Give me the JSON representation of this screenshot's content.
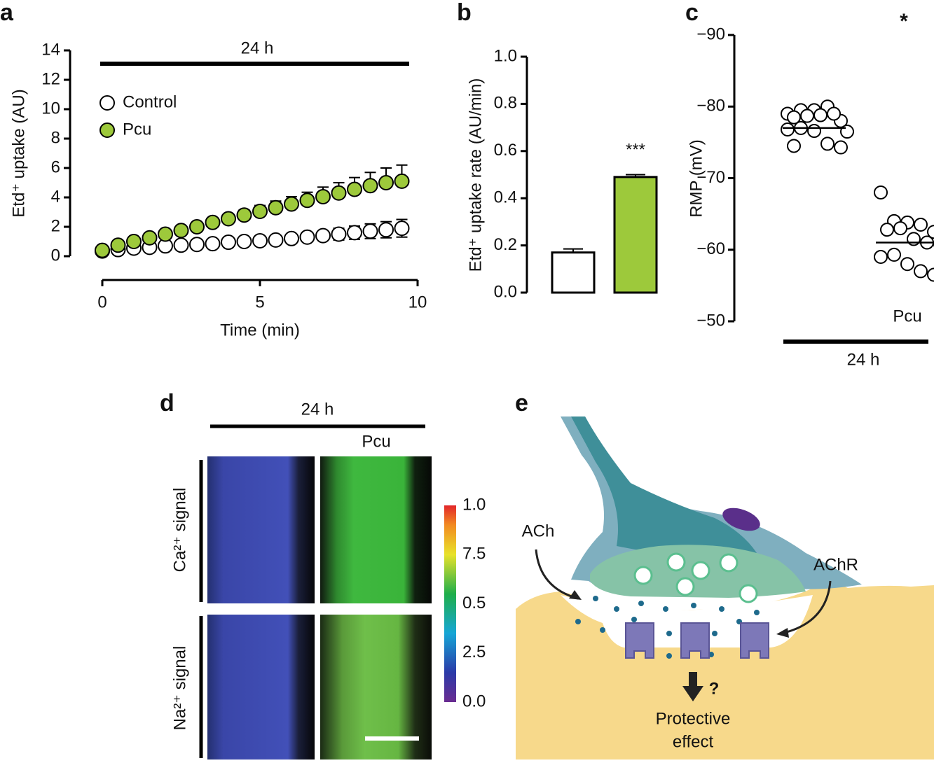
{
  "panel_labels": [
    "a",
    "b",
    "c",
    "d",
    "e"
  ],
  "chart_data": [
    {
      "type": "scatter",
      "annotation": "24 h",
      "xlabel": "Time (min)",
      "ylabel": "Etd⁺ uptake (AU)",
      "x": [
        0,
        0.5,
        1,
        1.5,
        2,
        2.5,
        3,
        3.5,
        4,
        4.5,
        5,
        5.5,
        6,
        6.5,
        7,
        7.5,
        8,
        8.5,
        9,
        9.5
      ],
      "xlim": [
        0,
        10
      ],
      "xticks": [
        0,
        5,
        10
      ],
      "ylim": [
        0,
        14
      ],
      "yticks": [
        0,
        2,
        4,
        6,
        8,
        10,
        12,
        14
      ],
      "legend": "upper left",
      "series": [
        {
          "name": "Control",
          "color": "#ffffff",
          "error_direction": "both",
          "values": [
            0.35,
            0.45,
            0.55,
            0.6,
            0.7,
            0.75,
            0.8,
            0.85,
            0.95,
            1.0,
            1.05,
            1.1,
            1.2,
            1.3,
            1.4,
            1.5,
            1.6,
            1.7,
            1.8,
            1.9
          ],
          "errors": [
            0.05,
            0.05,
            0.05,
            0.05,
            0.05,
            0.05,
            0.05,
            0.05,
            0.05,
            0.05,
            0.05,
            0.05,
            0.1,
            0.15,
            0.3,
            0.4,
            0.45,
            0.5,
            0.55,
            0.6
          ]
        },
        {
          "name": "Pcu",
          "color": "#9dc93b",
          "error_direction": "up",
          "values": [
            0.4,
            0.75,
            1.0,
            1.25,
            1.5,
            1.75,
            2.0,
            2.3,
            2.55,
            2.8,
            3.05,
            3.3,
            3.55,
            3.8,
            4.05,
            4.3,
            4.55,
            4.8,
            5.0,
            5.1
          ],
          "errors": [
            0.05,
            0.05,
            0.05,
            0.05,
            0.05,
            0.05,
            0.1,
            0.2,
            0.3,
            0.35,
            0.4,
            0.45,
            0.5,
            0.55,
            0.65,
            0.7,
            0.8,
            0.9,
            1.0,
            1.1
          ]
        }
      ]
    },
    {
      "type": "bar",
      "ylabel": "Etd⁺ uptake rate (AU/min)",
      "annotation": "***",
      "categories": [
        null,
        null
      ],
      "values": [
        0.17,
        0.49
      ],
      "errors": [
        0.015,
        0.01
      ],
      "colors": [
        "#ffffff",
        "#9dc93b"
      ],
      "ylim": [
        0,
        1
      ],
      "yticks": [
        {
          "value": 0,
          "label": "0.0"
        },
        0.2,
        0.4,
        0.6,
        0.8,
        {
          "value": 1,
          "label": "1.0"
        }
      ]
    },
    {
      "type": "strip",
      "ylabel": "RMP (mV)",
      "annotation": "*",
      "bracket_label": "24 h",
      "categories": [
        null,
        "Pcu"
      ],
      "values": [
        [
          -79,
          -79.5,
          -79.5,
          -80,
          -78,
          -78.5,
          -78.7,
          -78.8,
          -79,
          -76.5,
          -76.8,
          -77,
          -76.6,
          -74.8,
          -74.3,
          -74.5
        ],
        [
          -68,
          -64,
          -63.8,
          -63.5,
          -62.5,
          -62.8,
          -63,
          -61.5,
          -61,
          -60.8,
          -59,
          -59.3,
          -58,
          -57,
          -56.5
        ]
      ],
      "means": [
        -77,
        -61
      ],
      "ylim": [
        -50,
        -90
      ],
      "yticks": [
        {
          "value": -90,
          "label": "−90"
        },
        {
          "value": -80,
          "label": "−80"
        },
        {
          "value": -70,
          "label": "−70"
        },
        {
          "value": -60,
          "label": "−60"
        },
        {
          "value": -50,
          "label": "−50"
        }
      ]
    }
  ],
  "panel_d": {
    "annotation": "24 h",
    "column_label": "Pcu",
    "rows": [
      "Ca²⁺ signal",
      "Na²⁺ signal"
    ],
    "colorbar_labels": [
      "1.0",
      "7.5",
      "0.5",
      "2.5",
      "0.0"
    ]
  },
  "panel_e": {
    "labels": [
      "ACh",
      "AChR",
      "?"
    ],
    "outcome": [
      "Protective",
      "effect"
    ]
  }
}
